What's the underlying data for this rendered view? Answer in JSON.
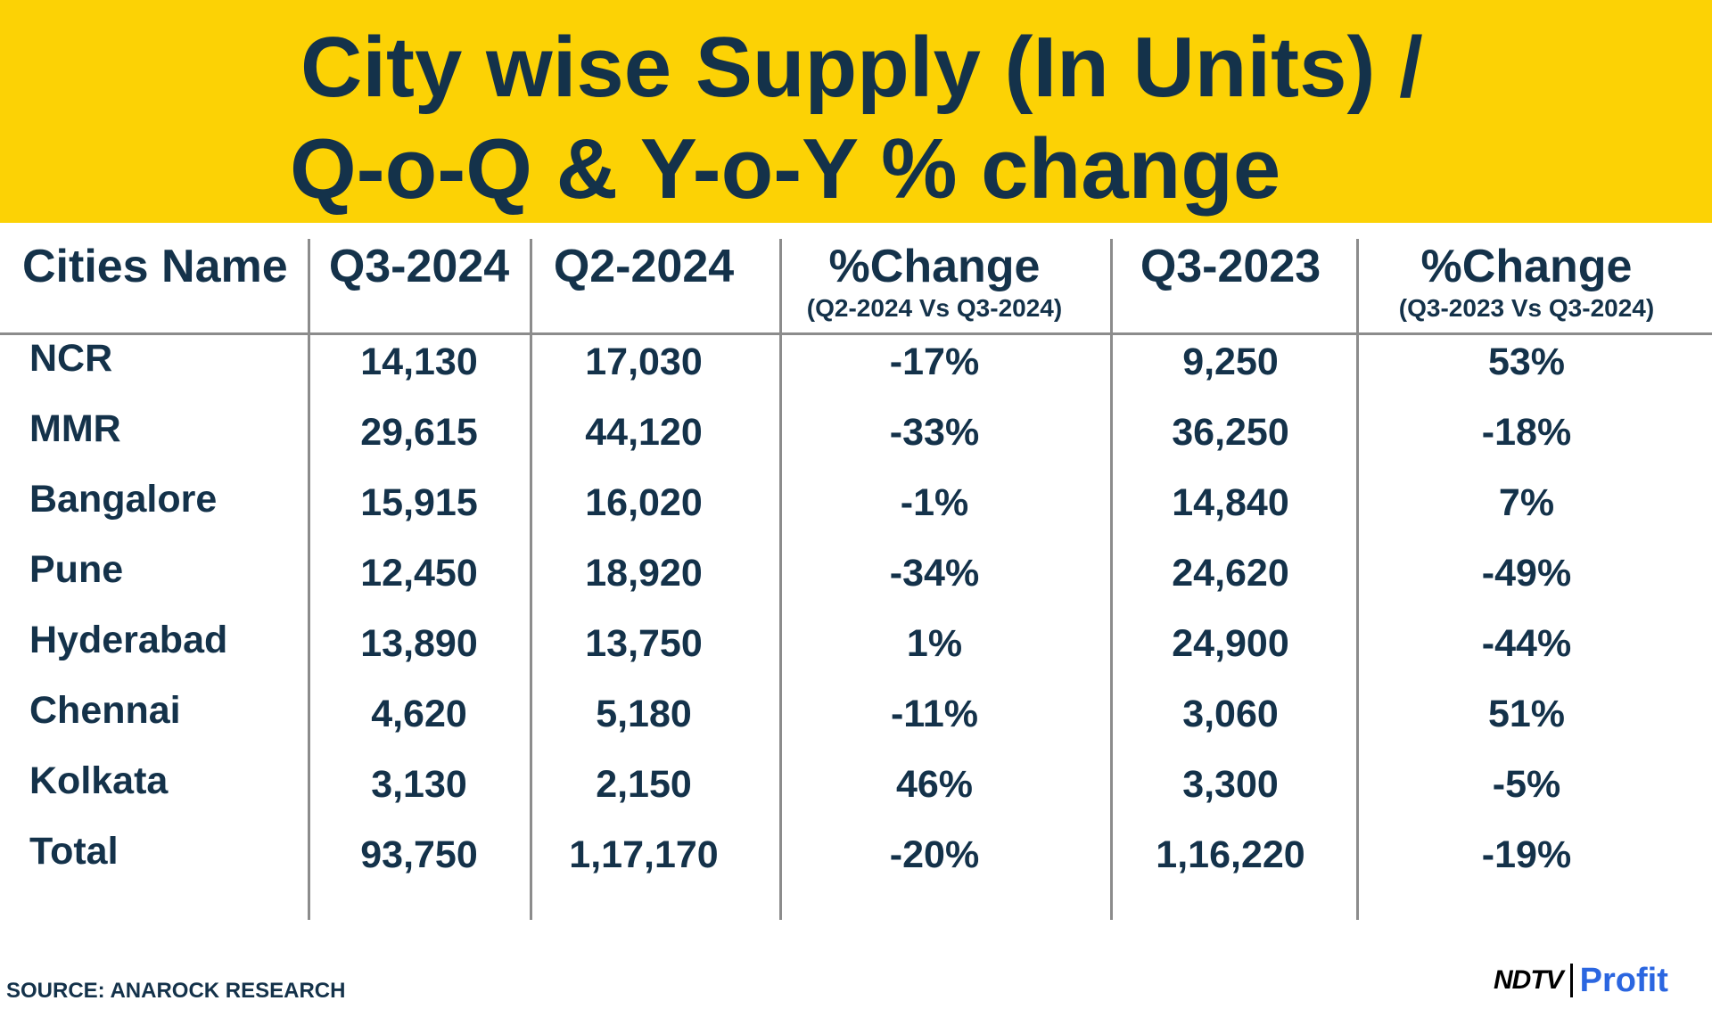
{
  "title": {
    "line1": "City wise Supply (In Units) /",
    "line2": "Q-o-Q & Y-o-Y % change"
  },
  "colors": {
    "banner": "#fcd205",
    "text": "#14324a",
    "divider": "#8c8c8c",
    "brand_profit": "#2b66e0"
  },
  "chart_data": {
    "type": "table",
    "title": "City wise Supply (In Units) / Q-o-Q & Y-o-Y % change",
    "columns": [
      {
        "label": "Cities Name",
        "sub": ""
      },
      {
        "label": "Q3-2024",
        "sub": ""
      },
      {
        "label": "Q2-2024",
        "sub": ""
      },
      {
        "label": "%Change",
        "sub": "(Q2-2024 Vs Q3-2024)"
      },
      {
        "label": "Q3-2023",
        "sub": ""
      },
      {
        "label": "%Change",
        "sub": "(Q3-2023 Vs Q3-2024)"
      }
    ],
    "rows": [
      [
        "NCR",
        "14,130",
        "17,030",
        "-17%",
        "9,250",
        "53%"
      ],
      [
        "MMR",
        "29,615",
        "44,120",
        "-33%",
        "36,250",
        "-18%"
      ],
      [
        "Bangalore",
        "15,915",
        "16,020",
        "-1%",
        "14,840",
        "7%"
      ],
      [
        "Pune",
        "12,450",
        "18,920",
        "-34%",
        "24,620",
        "-49%"
      ],
      [
        "Hyderabad",
        "13,890",
        "13,750",
        "1%",
        "24,900",
        "-44%"
      ],
      [
        "Chennai",
        "4,620",
        "5,180",
        "-11%",
        "3,060",
        "51%"
      ],
      [
        "Kolkata",
        "3,130",
        "2,150",
        "46%",
        "3,300",
        "-5%"
      ],
      [
        "Total",
        "93,750",
        "1,17,170",
        "-20%",
        "1,16,220",
        "-19%"
      ]
    ]
  },
  "footer": {
    "source": "SOURCE: ANAROCK RESEARCH",
    "brand_left": "NDTV",
    "brand_right": "Profit"
  }
}
